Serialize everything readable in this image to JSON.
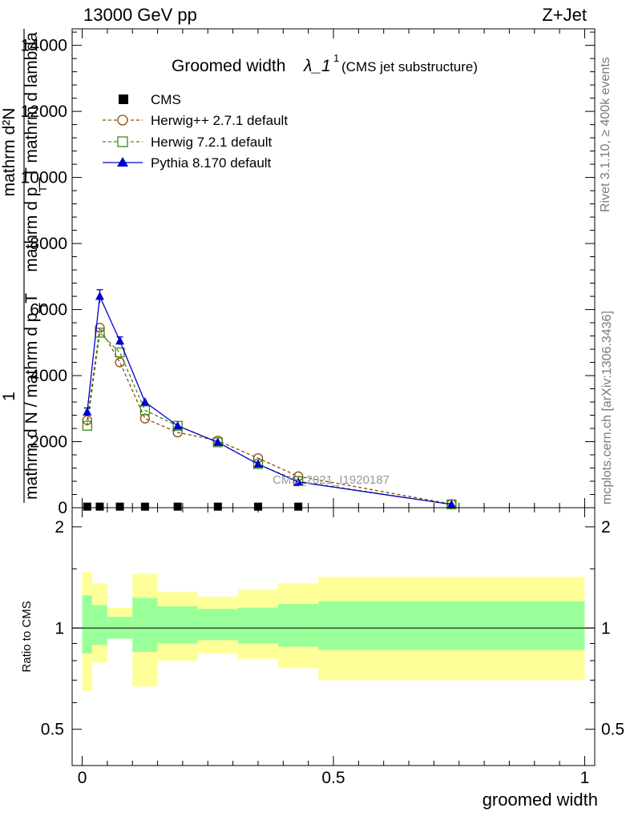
{
  "header": {
    "left": "13000 GeV pp",
    "right": "Z+Jet"
  },
  "side_labels": {
    "rivet": "Rivet 3.1.10, ≥ 400k events",
    "mcplots": "mcplots.cern.ch [arXiv:1306.3436]"
  },
  "watermark": "CMS_2021_I1920187",
  "colors": {
    "herwig_pp": "#8b4a0b",
    "herwig7": "#3a8a1a",
    "pythia": "#0000cc",
    "band_inner": "#99ff99",
    "band_outer": "#ffff99",
    "data": "#000000"
  },
  "chart_data": [
    {
      "type": "line",
      "panel": "main",
      "title_main": "Groomed width",
      "title_symbol": "λ_1",
      "title_sup": "1",
      "title_note": "(CMS jet substructure)",
      "ylabel_numerator_top": "1",
      "ylabel_denominator_top": "mathrm d N / mathrm d p_T",
      "ylabel_numerator_main": "mathrm d²N",
      "ylabel_denominator_main": "mathrm d p_T mathrm d lambda",
      "ylabel_sub": "T",
      "xlim": [
        -0.02,
        1.02
      ],
      "ylim": [
        0,
        14500
      ],
      "yticks": [
        0,
        2000,
        4000,
        6000,
        8000,
        10000,
        12000,
        14000
      ],
      "ytick_labels": [
        "0",
        "2000",
        "4000",
        "6000",
        "8000",
        "10000",
        "12000",
        "14000"
      ],
      "grid": false,
      "legend_position": "top-left",
      "series": [
        {
          "name": "CMS",
          "marker": "square",
          "x": [
            0.01,
            0.035,
            0.075,
            0.125,
            0.19,
            0.27,
            0.35,
            0.43
          ],
          "y": [
            8,
            8,
            8,
            8,
            8,
            8,
            8,
            8
          ]
        },
        {
          "name": "Herwig++ 2.7.1 default",
          "marker": "circle",
          "x": [
            0.01,
            0.035,
            0.075,
            0.125,
            0.19,
            0.27,
            0.35,
            0.43,
            0.735
          ],
          "y": [
            2650,
            5450,
            4400,
            2700,
            2280,
            2030,
            1500,
            950,
            110
          ]
        },
        {
          "name": "Herwig 7.2.1 default",
          "marker": "square-open",
          "x": [
            0.01,
            0.035,
            0.075,
            0.125,
            0.19,
            0.27,
            0.35,
            0.43,
            0.735
          ],
          "y": [
            2480,
            5300,
            4700,
            2950,
            2480,
            1980,
            1320,
            800,
            100
          ]
        },
        {
          "name": "Pythia 8.170 default",
          "marker": "triangle",
          "x": [
            0.01,
            0.035,
            0.075,
            0.125,
            0.19,
            0.27,
            0.35,
            0.43,
            0.735
          ],
          "y": [
            2900,
            6400,
            5050,
            3200,
            2480,
            1980,
            1320,
            780,
            100
          ],
          "yerr": [
            120,
            200,
            120,
            0,
            0,
            0,
            0,
            0,
            0
          ]
        }
      ]
    },
    {
      "type": "area",
      "panel": "ratio",
      "ylabel": "Ratio to CMS",
      "xlabel": "groomed width",
      "xlim": [
        -0.02,
        1.02
      ],
      "ylim": [
        0.39,
        2.28
      ],
      "ytick_labels": [
        "0.5",
        "1",
        "2"
      ],
      "yticks": [
        0.5,
        1,
        2
      ],
      "xticks": [
        0,
        0.5,
        1
      ],
      "xtick_labels": [
        "0",
        "0.5",
        "1"
      ],
      "bins": [
        0.0,
        0.02,
        0.05,
        0.1,
        0.15,
        0.23,
        0.31,
        0.39,
        0.47,
        1.0
      ],
      "outer_low": [
        0.65,
        0.79,
        0.93,
        0.67,
        0.8,
        0.84,
        0.81,
        0.76,
        0.7
      ],
      "outer_high": [
        1.47,
        1.36,
        1.15,
        1.45,
        1.28,
        1.24,
        1.3,
        1.36,
        1.42
      ],
      "inner_low": [
        0.84,
        0.89,
        0.93,
        0.85,
        0.9,
        0.92,
        0.9,
        0.88,
        0.86
      ],
      "inner_high": [
        1.25,
        1.17,
        1.08,
        1.23,
        1.16,
        1.14,
        1.15,
        1.18,
        1.2
      ]
    }
  ]
}
